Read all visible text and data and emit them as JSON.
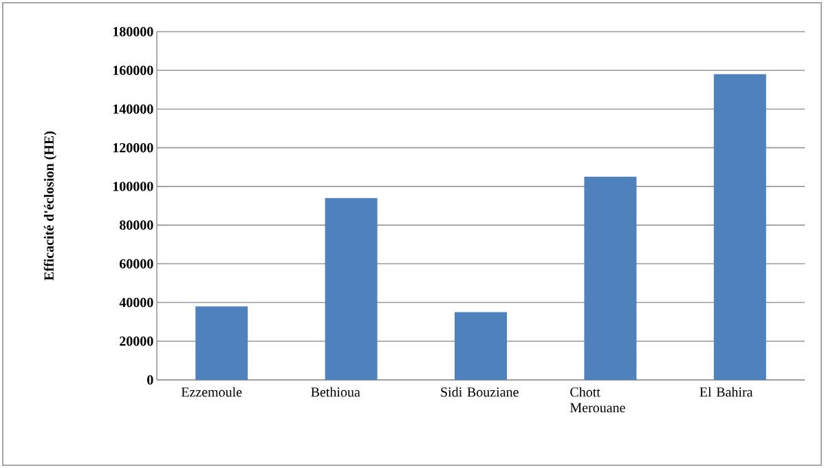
{
  "chart_data": {
    "type": "bar",
    "ylabel": "Efficacité d'éclosion (HE)",
    "categories": [
      "Ezzemoule",
      "Bethioua",
      "Sidi Bouziane",
      "Chott Merouane",
      "El Bahira"
    ],
    "values": [
      38000,
      94000,
      35000,
      105000,
      158000
    ],
    "color": "#4f81bd",
    "ylim": [
      0,
      180000
    ],
    "yticks": [
      0,
      20000,
      40000,
      60000,
      80000,
      100000,
      120000,
      140000,
      160000,
      180000
    ],
    "grid": "y"
  }
}
